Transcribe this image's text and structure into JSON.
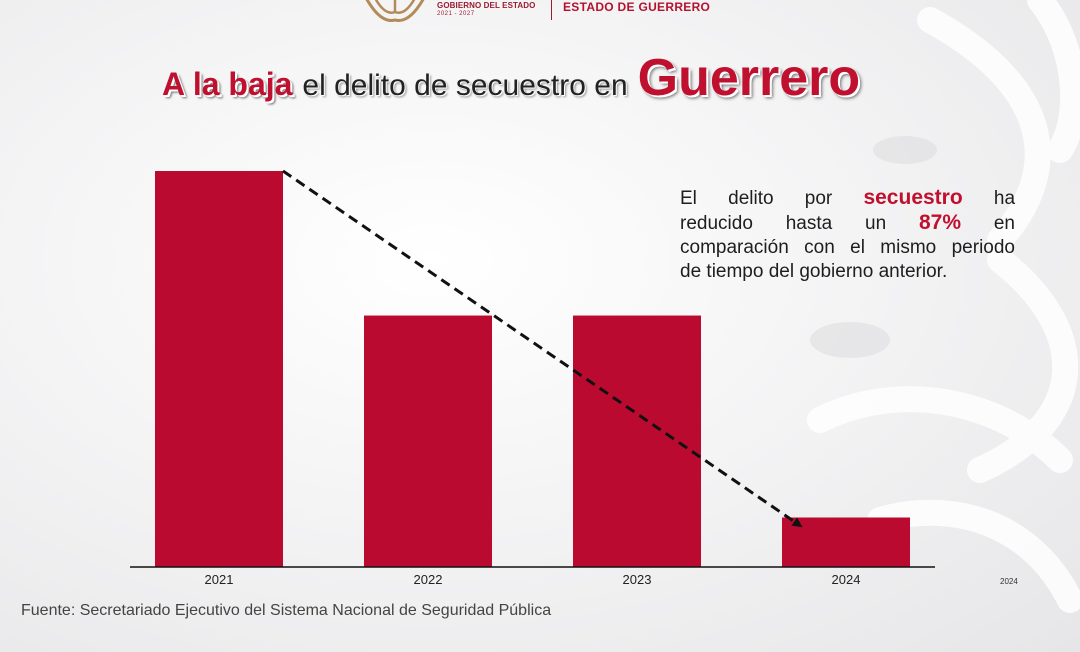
{
  "header": {
    "gov_line1": "GOBIERNO DEL ESTADO",
    "gov_line2": "2021 - 2027",
    "estado": "ESTADO DE GUERRERO"
  },
  "title": {
    "part1": "A la baja",
    "part2": "el delito de secuestro en",
    "part3": "Guerrero"
  },
  "info": {
    "w1": "El",
    "w2": "delito",
    "w3": "por",
    "hl1": "secuestro",
    "w4": "ha",
    "w5": "reducido",
    "w6": "hasta",
    "w7": "un",
    "hl2": "87%",
    "w8": "en",
    "line3": "comparación con el mismo periodo",
    "line4": "de tiempo del gobierno anterior."
  },
  "source": "Fuente: Secretariado Ejecutivo del Sistema Nacional de Seguridad Pública",
  "corner_label": "2024",
  "colors": {
    "bar": "#bb0a30",
    "accent": "#c0102f",
    "trend": "#111111"
  },
  "chart_data": {
    "type": "bar",
    "title": "A la baja el delito de secuestro en Guerrero",
    "categories": [
      "2021",
      "2022",
      "2023",
      "2024"
    ],
    "values": [
      100,
      63.5,
      63.5,
      12.5
    ],
    "ylim": [
      0,
      100
    ],
    "xlabel": "",
    "ylabel": "",
    "grid": false,
    "trend_line": {
      "from": "2021",
      "to": "2024",
      "style": "dashed-arrow"
    }
  }
}
